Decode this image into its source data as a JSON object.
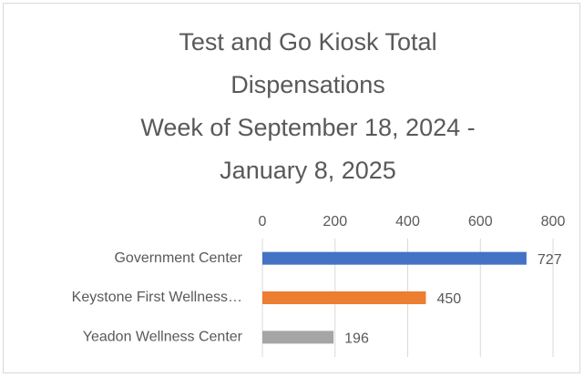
{
  "chart_data": {
    "type": "bar",
    "orientation": "horizontal",
    "title": [
      "Test and Go Kiosk Total",
      "Dispensations",
      "Week of September 18, 2024 -",
      "January 8, 2025"
    ],
    "categories": [
      "Government Center",
      "Keystone First Wellness…",
      "Yeadon Wellness Center"
    ],
    "values": [
      727,
      450,
      196
    ],
    "colors": [
      "#4472c4",
      "#ed7d31",
      "#a5a5a5"
    ],
    "xlim": [
      0,
      800
    ],
    "xticks": [
      0,
      200,
      400,
      600,
      800
    ],
    "grid": true
  }
}
